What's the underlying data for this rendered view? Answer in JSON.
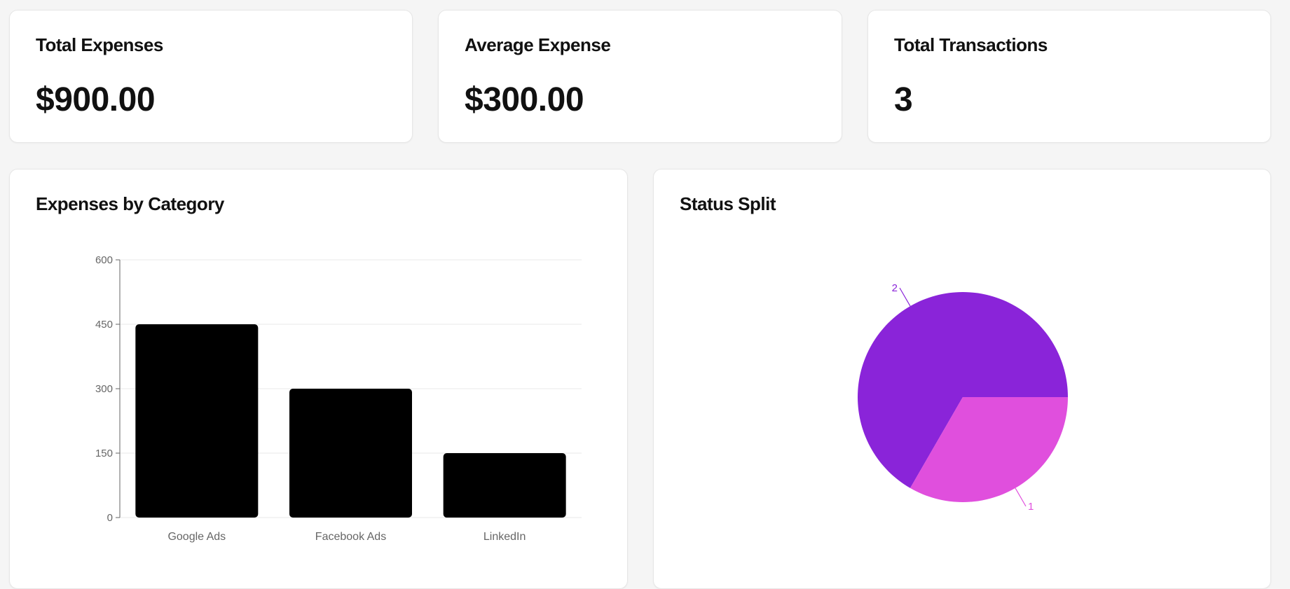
{
  "stats": [
    {
      "title": "Total Expenses",
      "value": "$900.00"
    },
    {
      "title": "Average Expense",
      "value": "$300.00"
    },
    {
      "title": "Total Transactions",
      "value": "3"
    }
  ],
  "bar_panel": {
    "title": "Expenses by Category"
  },
  "pie_panel": {
    "title": "Status Split"
  },
  "colors": {
    "bar": "#000000",
    "pie_primary": "#8a24d9",
    "pie_secondary": "#e04fdd",
    "axis": "#666666",
    "grid": "#e9e9e9"
  },
  "chart_data": [
    {
      "type": "bar",
      "title": "Expenses by Category",
      "categories": [
        "Google Ads",
        "Facebook Ads",
        "LinkedIn"
      ],
      "values": [
        450,
        300,
        150
      ],
      "yticks": [
        0,
        150,
        300,
        450,
        600
      ],
      "ylim": [
        0,
        600
      ],
      "grid": true
    },
    {
      "type": "pie",
      "title": "Status Split",
      "labels": [
        "2",
        "1"
      ],
      "values": [
        2,
        1
      ],
      "colors": [
        "#8a24d9",
        "#e04fdd"
      ]
    }
  ]
}
